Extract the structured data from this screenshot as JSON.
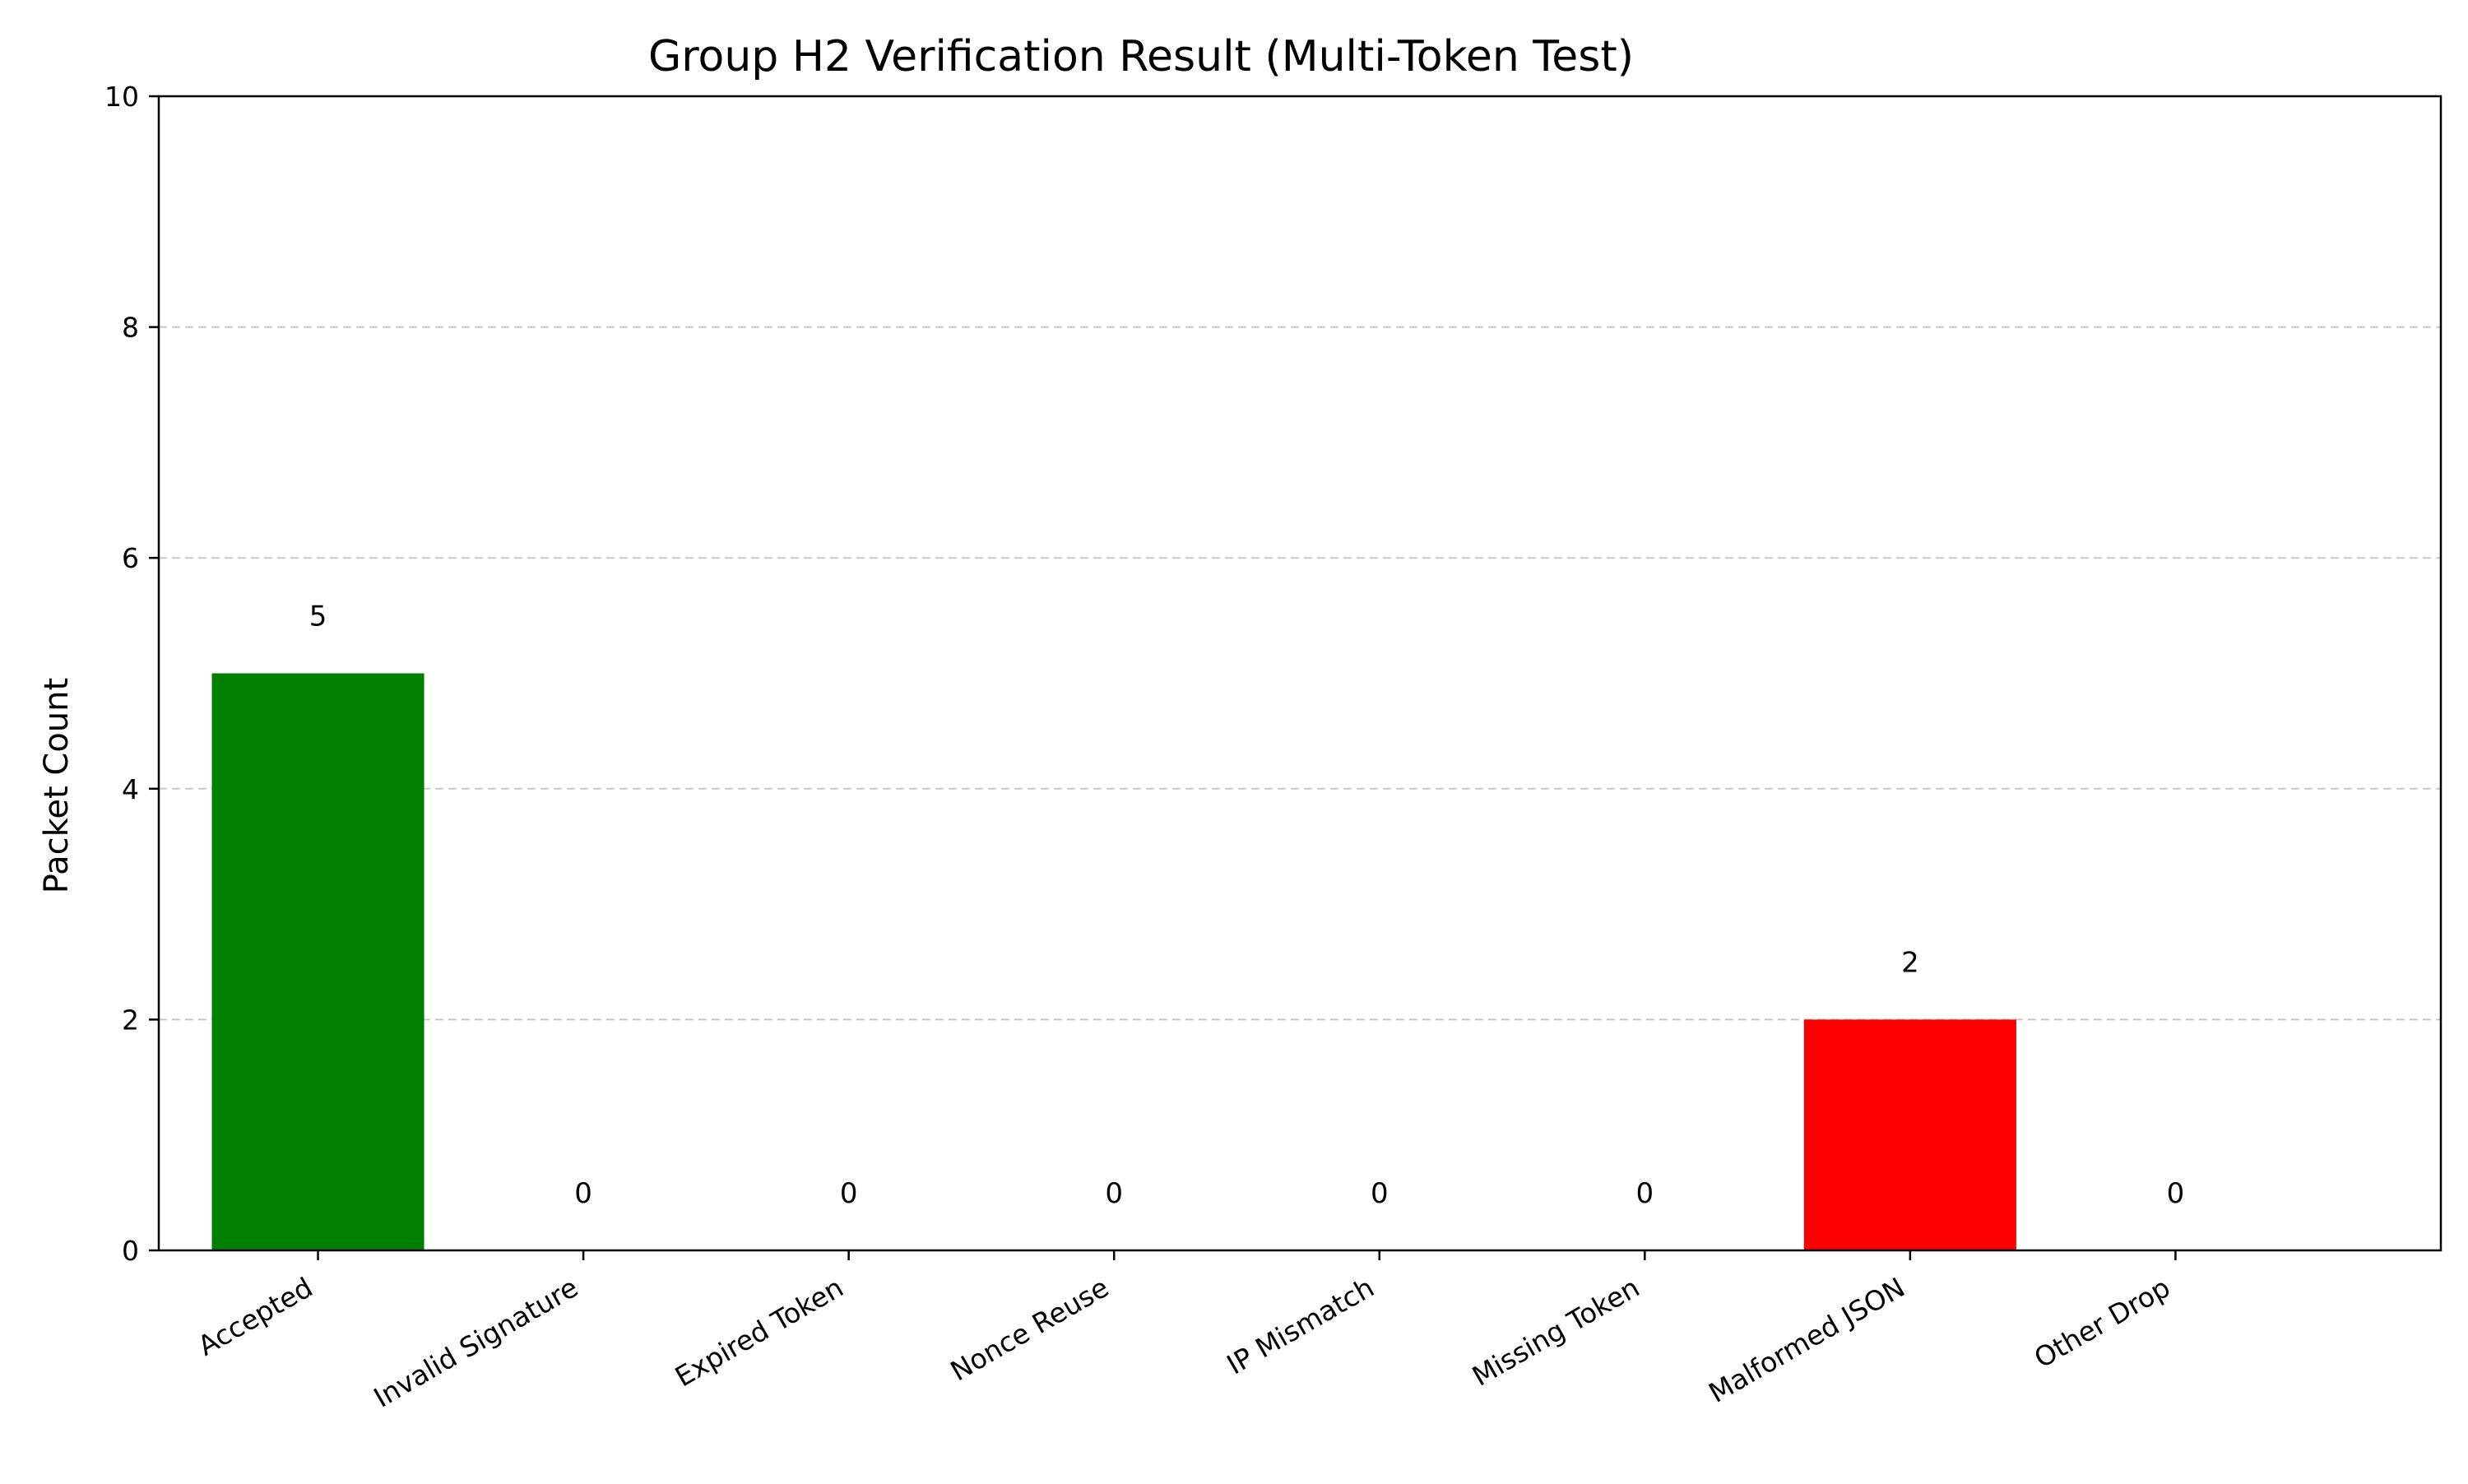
{
  "chart_data": {
    "type": "bar",
    "title": "Group H2 Verification Result (Multi-Token Test)",
    "xlabel": "",
    "ylabel": "Packet Count",
    "categories": [
      "Accepted",
      "Invalid Signature",
      "Expired Token",
      "Nonce Reuse",
      "IP Mismatch",
      "Missing Token",
      "Malformed JSON",
      "Other Drop"
    ],
    "values": [
      5,
      0,
      0,
      0,
      0,
      0,
      2,
      0
    ],
    "bar_colors": [
      "#008000",
      "#008000",
      "#008000",
      "#008000",
      "#008000",
      "#008000",
      "#ff0000",
      "#808080"
    ],
    "ylim": [
      0,
      10
    ],
    "yticks": [
      0,
      2,
      4,
      6,
      8,
      10
    ],
    "grid": "horizontal dashed",
    "legend": "none"
  }
}
